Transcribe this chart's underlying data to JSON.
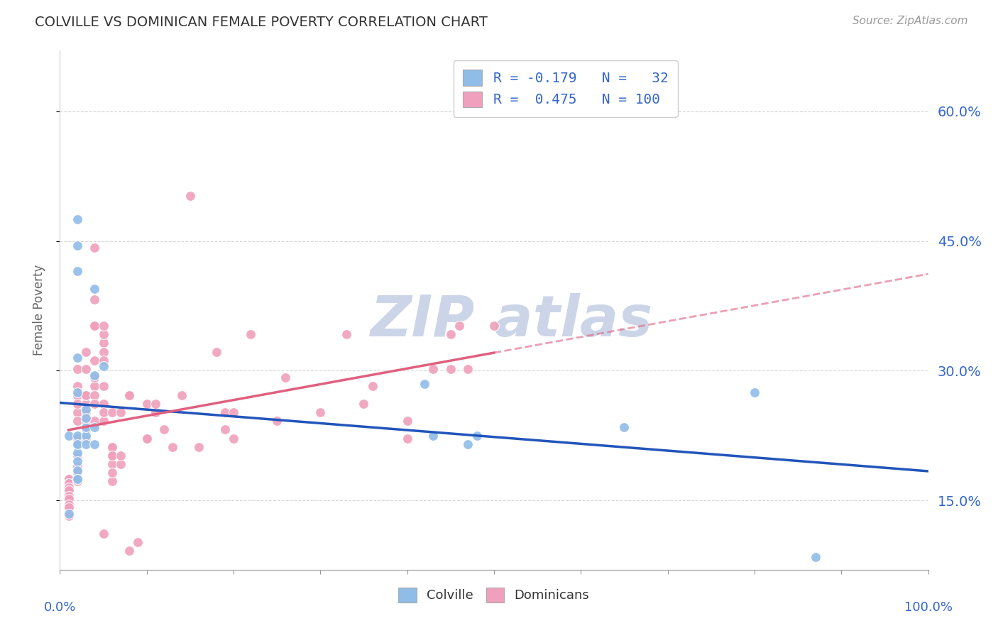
{
  "title": "COLVILLE VS DOMINICAN FEMALE POVERTY CORRELATION CHART",
  "source": "Source: ZipAtlas.com",
  "ylabel": "Female Poverty",
  "ytick_labels": [
    "15.0%",
    "30.0%",
    "45.0%",
    "60.0%"
  ],
  "ytick_values": [
    0.15,
    0.3,
    0.45,
    0.6
  ],
  "xlim": [
    0.0,
    1.0
  ],
  "ylim": [
    0.07,
    0.67
  ],
  "colville_color": "#90bce8",
  "dominican_color": "#f0a0bc",
  "colville_line_color": "#2255bb",
  "dominican_line_color": "#e06080",
  "background_color": "#ffffff",
  "grid_color": "#cccccc",
  "watermark_color": "#ccd5e8",
  "colville_points": [
    [
      0.01,
      0.135
    ],
    [
      0.01,
      0.225
    ],
    [
      0.02,
      0.445
    ],
    [
      0.02,
      0.475
    ],
    [
      0.02,
      0.415
    ],
    [
      0.02,
      0.315
    ],
    [
      0.02,
      0.275
    ],
    [
      0.02,
      0.215
    ],
    [
      0.02,
      0.225
    ],
    [
      0.02,
      0.205
    ],
    [
      0.02,
      0.215
    ],
    [
      0.02,
      0.195
    ],
    [
      0.02,
      0.185
    ],
    [
      0.02,
      0.175
    ],
    [
      0.02,
      0.175
    ],
    [
      0.03,
      0.255
    ],
    [
      0.03,
      0.225
    ],
    [
      0.03,
      0.235
    ],
    [
      0.03,
      0.215
    ],
    [
      0.03,
      0.245
    ],
    [
      0.04,
      0.395
    ],
    [
      0.04,
      0.235
    ],
    [
      0.04,
      0.215
    ],
    [
      0.04,
      0.295
    ],
    [
      0.05,
      0.305
    ],
    [
      0.42,
      0.285
    ],
    [
      0.43,
      0.225
    ],
    [
      0.47,
      0.215
    ],
    [
      0.48,
      0.225
    ],
    [
      0.65,
      0.235
    ],
    [
      0.8,
      0.275
    ],
    [
      0.87,
      0.085
    ]
  ],
  "dominican_points": [
    [
      0.01,
      0.17
    ],
    [
      0.01,
      0.175
    ],
    [
      0.01,
      0.175
    ],
    [
      0.01,
      0.17
    ],
    [
      0.01,
      0.17
    ],
    [
      0.01,
      0.165
    ],
    [
      0.01,
      0.162
    ],
    [
      0.01,
      0.155
    ],
    [
      0.01,
      0.152
    ],
    [
      0.01,
      0.145
    ],
    [
      0.01,
      0.142
    ],
    [
      0.01,
      0.132
    ],
    [
      0.02,
      0.19
    ],
    [
      0.02,
      0.182
    ],
    [
      0.02,
      0.175
    ],
    [
      0.02,
      0.172
    ],
    [
      0.02,
      0.222
    ],
    [
      0.02,
      0.202
    ],
    [
      0.02,
      0.222
    ],
    [
      0.02,
      0.252
    ],
    [
      0.02,
      0.302
    ],
    [
      0.02,
      0.272
    ],
    [
      0.02,
      0.262
    ],
    [
      0.02,
      0.282
    ],
    [
      0.02,
      0.242
    ],
    [
      0.03,
      0.222
    ],
    [
      0.03,
      0.232
    ],
    [
      0.03,
      0.242
    ],
    [
      0.03,
      0.232
    ],
    [
      0.03,
      0.252
    ],
    [
      0.03,
      0.272
    ],
    [
      0.03,
      0.262
    ],
    [
      0.03,
      0.272
    ],
    [
      0.03,
      0.322
    ],
    [
      0.03,
      0.302
    ],
    [
      0.04,
      0.352
    ],
    [
      0.04,
      0.352
    ],
    [
      0.04,
      0.382
    ],
    [
      0.04,
      0.282
    ],
    [
      0.04,
      0.312
    ],
    [
      0.04,
      0.272
    ],
    [
      0.04,
      0.292
    ],
    [
      0.04,
      0.442
    ],
    [
      0.04,
      0.262
    ],
    [
      0.04,
      0.242
    ],
    [
      0.05,
      0.332
    ],
    [
      0.05,
      0.322
    ],
    [
      0.05,
      0.312
    ],
    [
      0.05,
      0.262
    ],
    [
      0.05,
      0.282
    ],
    [
      0.05,
      0.342
    ],
    [
      0.05,
      0.352
    ],
    [
      0.05,
      0.242
    ],
    [
      0.05,
      0.252
    ],
    [
      0.05,
      0.112
    ],
    [
      0.06,
      0.212
    ],
    [
      0.06,
      0.252
    ],
    [
      0.06,
      0.212
    ],
    [
      0.06,
      0.202
    ],
    [
      0.06,
      0.172
    ],
    [
      0.06,
      0.192
    ],
    [
      0.06,
      0.202
    ],
    [
      0.06,
      0.182
    ],
    [
      0.07,
      0.192
    ],
    [
      0.07,
      0.202
    ],
    [
      0.07,
      0.252
    ],
    [
      0.08,
      0.272
    ],
    [
      0.08,
      0.272
    ],
    [
      0.08,
      0.092
    ],
    [
      0.09,
      0.102
    ],
    [
      0.1,
      0.262
    ],
    [
      0.1,
      0.222
    ],
    [
      0.1,
      0.222
    ],
    [
      0.11,
      0.252
    ],
    [
      0.11,
      0.262
    ],
    [
      0.12,
      0.232
    ],
    [
      0.13,
      0.212
    ],
    [
      0.14,
      0.272
    ],
    [
      0.15,
      0.502
    ],
    [
      0.16,
      0.212
    ],
    [
      0.18,
      0.322
    ],
    [
      0.19,
      0.232
    ],
    [
      0.19,
      0.252
    ],
    [
      0.2,
      0.252
    ],
    [
      0.2,
      0.222
    ],
    [
      0.22,
      0.342
    ],
    [
      0.25,
      0.242
    ],
    [
      0.26,
      0.292
    ],
    [
      0.3,
      0.252
    ],
    [
      0.33,
      0.342
    ],
    [
      0.35,
      0.262
    ],
    [
      0.36,
      0.282
    ],
    [
      0.4,
      0.222
    ],
    [
      0.4,
      0.242
    ],
    [
      0.43,
      0.302
    ],
    [
      0.45,
      0.342
    ],
    [
      0.45,
      0.302
    ],
    [
      0.46,
      0.352
    ],
    [
      0.47,
      0.302
    ],
    [
      0.5,
      0.352
    ]
  ]
}
